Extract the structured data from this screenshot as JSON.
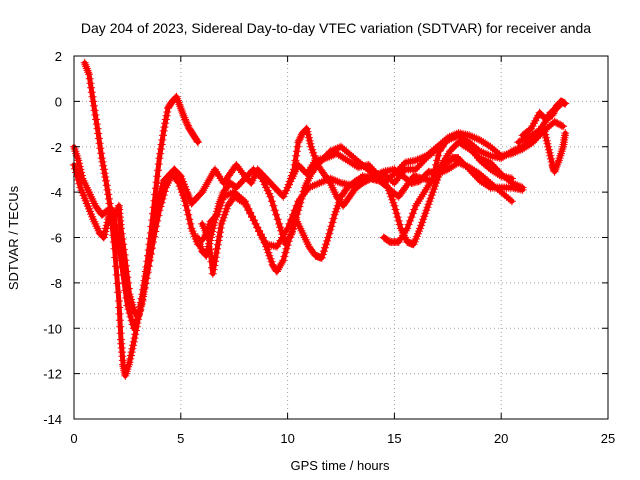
{
  "chart_data": {
    "type": "scatter",
    "title": "Day 204 of 2023, Sidereal Day-to-day VTEC variation (SDTVAR) for receiver anda",
    "xlabel": "GPS time / hours",
    "ylabel": "SDTVAR / TECUs",
    "xlim": [
      0,
      25
    ],
    "ylim": [
      -14,
      2
    ],
    "xticks": [
      0,
      5,
      10,
      15,
      20,
      25
    ],
    "yticks": [
      -14,
      -12,
      -10,
      -8,
      -6,
      -4,
      -2,
      0,
      2
    ],
    "grid": true,
    "marker": "+",
    "color": "#ff0000",
    "series": [
      {
        "points": [
          [
            0.0,
            -2.8
          ],
          [
            0.3,
            -3.8
          ],
          [
            0.6,
            -4.5
          ],
          [
            0.9,
            -5.2
          ],
          [
            1.2,
            -5.8
          ],
          [
            1.4,
            -6.0
          ],
          [
            1.6,
            -5.2
          ],
          [
            1.8,
            -4.8
          ],
          [
            2.0,
            -5.0
          ],
          [
            2.1,
            -4.6
          ],
          [
            2.2,
            -5.6
          ],
          [
            2.4,
            -7.0
          ],
          [
            2.6,
            -8.5
          ],
          [
            2.8,
            -9.2
          ],
          [
            3.0,
            -9.5
          ],
          [
            3.2,
            -8.8
          ],
          [
            3.4,
            -7.6
          ],
          [
            3.6,
            -6.5
          ],
          [
            3.8,
            -5.2
          ],
          [
            4.0,
            -4.2
          ],
          [
            4.2,
            -3.5
          ],
          [
            4.5,
            -3.2
          ],
          [
            4.7,
            -3.0
          ],
          [
            5.0,
            -3.3
          ],
          [
            5.3,
            -4.0
          ],
          [
            5.5,
            -4.5
          ],
          [
            5.7,
            -4.3
          ],
          [
            6.0,
            -4.0
          ],
          [
            6.3,
            -3.5
          ],
          [
            6.6,
            -3.0
          ],
          [
            7.0,
            -3.6
          ],
          [
            7.3,
            -3.2
          ],
          [
            7.6,
            -2.8
          ],
          [
            8.0,
            -3.3
          ],
          [
            8.3,
            -3.6
          ],
          [
            8.6,
            -3.0
          ],
          [
            9.0,
            -3.4
          ],
          [
            9.4,
            -3.8
          ],
          [
            9.8,
            -4.2
          ],
          [
            10.2,
            -3.4
          ],
          [
            10.5,
            -2.8
          ],
          [
            10.9,
            -3.2
          ],
          [
            11.3,
            -2.6
          ],
          [
            11.8,
            -2.5
          ],
          [
            12.3,
            -2.3
          ],
          [
            12.8,
            -2.6
          ],
          [
            13.3,
            -2.9
          ],
          [
            13.8,
            -2.8
          ],
          [
            14.3,
            -3.3
          ],
          [
            14.8,
            -3.9
          ],
          [
            15.2,
            -4.2
          ],
          [
            15.5,
            -3.8
          ],
          [
            15.9,
            -3.3
          ],
          [
            16.3,
            -3.4
          ],
          [
            16.8,
            -3.5
          ],
          [
            17.2,
            -2.8
          ],
          [
            17.6,
            -2.2
          ],
          [
            18.0,
            -1.8
          ],
          [
            18.5,
            -2.1
          ],
          [
            19.0,
            -2.5
          ],
          [
            19.5,
            -2.7
          ],
          [
            20.0,
            -3.2
          ],
          [
            20.5,
            -3.6
          ],
          [
            21.0,
            -3.8
          ]
        ]
      },
      {
        "points": [
          [
            0.5,
            1.7
          ],
          [
            0.7,
            1.2
          ],
          [
            0.9,
            0.0
          ],
          [
            1.1,
            -1.2
          ],
          [
            1.3,
            -2.5
          ],
          [
            1.5,
            -3.5
          ],
          [
            1.7,
            -4.7
          ],
          [
            1.9,
            -6.5
          ],
          [
            2.1,
            -8.8
          ],
          [
            2.2,
            -10.5
          ],
          [
            2.3,
            -11.6
          ],
          [
            2.4,
            -12.1
          ],
          [
            2.6,
            -11.5
          ],
          [
            2.8,
            -10.6
          ],
          [
            3.0,
            -9.6
          ],
          [
            3.2,
            -8.5
          ],
          [
            3.4,
            -7.3
          ],
          [
            3.6,
            -5.8
          ],
          [
            3.8,
            -4.1
          ],
          [
            4.0,
            -2.5
          ],
          [
            4.2,
            -1.3
          ],
          [
            4.4,
            -0.3
          ],
          [
            4.6,
            0.0
          ],
          [
            4.8,
            0.2
          ],
          [
            5.0,
            -0.3
          ],
          [
            5.2,
            -0.8
          ],
          [
            5.4,
            -1.2
          ],
          [
            5.6,
            -1.5
          ],
          [
            5.8,
            -1.8
          ]
        ]
      },
      {
        "points": [
          [
            0.0,
            -2.0
          ],
          [
            0.2,
            -2.6
          ],
          [
            0.4,
            -3.4
          ],
          [
            0.7,
            -4.0
          ],
          [
            1.0,
            -4.6
          ],
          [
            1.3,
            -5.0
          ],
          [
            1.6,
            -4.8
          ],
          [
            1.9,
            -5.2
          ],
          [
            2.2,
            -7.0
          ],
          [
            2.5,
            -9.0
          ],
          [
            2.8,
            -10.0
          ],
          [
            3.1,
            -9.2
          ],
          [
            3.4,
            -7.8
          ],
          [
            3.7,
            -6.2
          ],
          [
            4.0,
            -4.8
          ],
          [
            4.3,
            -3.8
          ],
          [
            4.6,
            -3.2
          ],
          [
            4.9,
            -3.6
          ],
          [
            5.2,
            -4.4
          ],
          [
            5.5,
            -5.6
          ],
          [
            5.8,
            -6.3
          ],
          [
            6.1,
            -6.0
          ],
          [
            6.4,
            -5.3
          ],
          [
            6.7,
            -5.0
          ],
          [
            7.0,
            -4.2
          ],
          [
            7.5,
            -4.0
          ],
          [
            8.0,
            -4.4
          ],
          [
            8.5,
            -5.4
          ],
          [
            9.0,
            -6.3
          ],
          [
            9.5,
            -6.4
          ],
          [
            10.0,
            -5.6
          ],
          [
            10.5,
            -4.4
          ],
          [
            11.0,
            -3.8
          ],
          [
            11.5,
            -3.6
          ],
          [
            12.0,
            -3.4
          ],
          [
            12.5,
            -3.6
          ],
          [
            13.0,
            -3.7
          ],
          [
            13.5,
            -3.3
          ],
          [
            14.0,
            -3.4
          ],
          [
            14.5,
            -3.2
          ],
          [
            15.0,
            -3.6
          ],
          [
            15.5,
            -3.0
          ],
          [
            16.0,
            -3.0
          ],
          [
            16.5,
            -2.5
          ],
          [
            17.0,
            -2.1
          ],
          [
            17.5,
            -1.7
          ],
          [
            18.0,
            -1.5
          ],
          [
            18.5,
            -1.8
          ],
          [
            19.0,
            -2.2
          ],
          [
            19.5,
            -2.4
          ],
          [
            20.0,
            -2.5
          ],
          [
            20.5,
            -2.2
          ],
          [
            21.0,
            -2.0
          ],
          [
            21.5,
            -1.6
          ],
          [
            22.0,
            -1.0
          ],
          [
            22.3,
            -0.5
          ],
          [
            22.6,
            -0.3
          ],
          [
            22.8,
            -0.1
          ]
        ]
      },
      {
        "points": [
          [
            5.8,
            -6.0
          ],
          [
            6.0,
            -6.6
          ],
          [
            6.2,
            -6.8
          ],
          [
            6.4,
            -6.0
          ],
          [
            6.6,
            -5.2
          ],
          [
            6.8,
            -4.5
          ],
          [
            7.0,
            -4.0
          ],
          [
            7.3,
            -3.6
          ],
          [
            7.6,
            -3.8
          ],
          [
            8.0,
            -3.4
          ],
          [
            8.4,
            -3.0
          ],
          [
            8.8,
            -3.4
          ],
          [
            9.2,
            -4.2
          ],
          [
            9.6,
            -5.4
          ],
          [
            9.9,
            -6.3
          ],
          [
            10.2,
            -5.8
          ],
          [
            10.5,
            -4.8
          ],
          [
            10.8,
            -3.8
          ],
          [
            11.1,
            -3.2
          ],
          [
            11.4,
            -2.8
          ],
          [
            11.7,
            -2.5
          ],
          [
            12.0,
            -2.2
          ],
          [
            12.5,
            -2.0
          ],
          [
            13.0,
            -2.4
          ],
          [
            13.5,
            -2.8
          ],
          [
            14.0,
            -3.2
          ],
          [
            14.5,
            -3.6
          ],
          [
            15.0,
            -3.2
          ],
          [
            15.5,
            -2.7
          ],
          [
            16.0,
            -2.6
          ],
          [
            16.5,
            -2.4
          ],
          [
            17.0,
            -2.0
          ],
          [
            17.5,
            -1.6
          ],
          [
            18.0,
            -1.4
          ],
          [
            18.5,
            -1.5
          ],
          [
            19.0,
            -1.7
          ],
          [
            19.5,
            -2.0
          ],
          [
            20.0,
            -2.4
          ],
          [
            20.5,
            -2.3
          ],
          [
            21.0,
            -2.1
          ],
          [
            21.5,
            -1.8
          ],
          [
            22.0,
            -1.3
          ],
          [
            22.5,
            -0.9
          ],
          [
            22.9,
            -1.1
          ]
        ]
      },
      {
        "points": [
          [
            6.0,
            -5.4
          ],
          [
            6.3,
            -6.0
          ],
          [
            6.5,
            -7.6
          ],
          [
            6.7,
            -6.5
          ],
          [
            6.9,
            -5.4
          ],
          [
            7.2,
            -4.6
          ],
          [
            7.5,
            -4.2
          ],
          [
            8.0,
            -4.5
          ],
          [
            8.5,
            -5.4
          ],
          [
            9.0,
            -6.4
          ],
          [
            9.3,
            -7.2
          ],
          [
            9.5,
            -7.5
          ],
          [
            9.8,
            -7.0
          ],
          [
            10.1,
            -6.0
          ],
          [
            10.4,
            -5.2
          ],
          [
            10.7,
            -5.8
          ],
          [
            11.0,
            -6.4
          ],
          [
            11.3,
            -6.8
          ],
          [
            11.6,
            -6.9
          ],
          [
            11.9,
            -6.0
          ],
          [
            12.2,
            -5.0
          ],
          [
            12.5,
            -4.2
          ],
          [
            12.8,
            -3.8
          ],
          [
            13.2,
            -3.5
          ],
          [
            13.6,
            -3.4
          ],
          [
            14.0,
            -3.3
          ],
          [
            14.5,
            -3.1
          ],
          [
            15.0,
            -3.0
          ],
          [
            15.4,
            -3.3
          ],
          [
            15.8,
            -3.6
          ],
          [
            16.2,
            -3.5
          ],
          [
            16.6,
            -3.1
          ],
          [
            17.0,
            -3.2
          ],
          [
            17.5,
            -3.0
          ],
          [
            18.0,
            -2.7
          ],
          [
            18.5,
            -2.9
          ],
          [
            19.0,
            -3.2
          ],
          [
            19.5,
            -3.6
          ],
          [
            20.0,
            -4.0
          ],
          [
            20.5,
            -4.4
          ]
        ]
      },
      {
        "points": [
          [
            10.0,
            -3.8
          ],
          [
            10.3,
            -3.0
          ],
          [
            10.5,
            -1.8
          ],
          [
            10.7,
            -1.4
          ],
          [
            10.9,
            -1.2
          ],
          [
            11.1,
            -2.0
          ],
          [
            11.4,
            -2.8
          ],
          [
            11.7,
            -3.2
          ],
          [
            12.0,
            -3.6
          ],
          [
            12.3,
            -4.2
          ],
          [
            12.6,
            -4.6
          ],
          [
            12.9,
            -4.2
          ],
          [
            13.2,
            -3.8
          ],
          [
            13.5,
            -3.6
          ],
          [
            13.9,
            -3.4
          ],
          [
            14.3,
            -3.5
          ],
          [
            14.7,
            -3.8
          ],
          [
            15.0,
            -4.6
          ],
          [
            15.3,
            -5.6
          ],
          [
            15.6,
            -6.2
          ],
          [
            15.9,
            -6.3
          ],
          [
            16.2,
            -5.6
          ],
          [
            16.5,
            -4.8
          ],
          [
            16.8,
            -4.0
          ],
          [
            17.1,
            -3.2
          ],
          [
            17.4,
            -2.8
          ],
          [
            17.7,
            -2.5
          ],
          [
            18.0,
            -2.5
          ],
          [
            18.5,
            -3.0
          ],
          [
            19.0,
            -3.5
          ],
          [
            19.5,
            -3.8
          ],
          [
            20.0,
            -3.8
          ],
          [
            20.5,
            -3.8
          ],
          [
            21.0,
            -3.9
          ]
        ]
      },
      {
        "points": [
          [
            14.5,
            -6.0
          ],
          [
            14.8,
            -6.2
          ],
          [
            15.2,
            -6.2
          ],
          [
            15.6,
            -5.6
          ],
          [
            16.0,
            -4.6
          ],
          [
            16.4,
            -4.0
          ],
          [
            16.8,
            -3.4
          ],
          [
            17.1,
            -2.2
          ],
          [
            17.3,
            -1.9
          ],
          [
            17.6,
            -1.6
          ],
          [
            18.0,
            -1.5
          ],
          [
            18.5,
            -2.0
          ],
          [
            19.0,
            -2.6
          ],
          [
            19.5,
            -3.0
          ],
          [
            20.0,
            -3.3
          ],
          [
            20.5,
            -3.4
          ]
        ]
      },
      {
        "points": [
          [
            20.8,
            -1.8
          ],
          [
            21.2,
            -1.6
          ],
          [
            21.6,
            -1.4
          ],
          [
            22.0,
            -1.2
          ],
          [
            22.2,
            -2.0
          ],
          [
            22.4,
            -2.8
          ],
          [
            22.5,
            -3.1
          ],
          [
            22.7,
            -2.6
          ],
          [
            22.9,
            -2.0
          ],
          [
            23.0,
            -1.4
          ]
        ]
      },
      {
        "points": [
          [
            21.0,
            -1.5
          ],
          [
            21.4,
            -1.2
          ],
          [
            21.8,
            -0.5
          ],
          [
            22.1,
            -0.8
          ],
          [
            22.4,
            -0.6
          ],
          [
            22.6,
            -0.2
          ],
          [
            22.8,
            0.0
          ],
          [
            23.0,
            -0.1
          ]
        ]
      }
    ]
  }
}
